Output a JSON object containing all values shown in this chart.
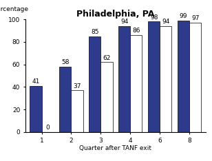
{
  "title": "Philadelphia, PA",
  "ylabel": "Percentage",
  "xlabel": "Quarter after TANF exit",
  "categories": [
    "1",
    "2",
    "3",
    "4",
    "6",
    "8"
  ],
  "blue_values": [
    41,
    58,
    85,
    94,
    98,
    99
  ],
  "white_values": [
    0,
    37,
    62,
    86,
    94,
    97
  ],
  "blue_color": "#2E3B8C",
  "white_color": "#FFFFFF",
  "bar_edge_color": "#000000",
  "ylim": [
    0,
    100
  ],
  "yticks": [
    0,
    20,
    40,
    60,
    80,
    100
  ],
  "bar_width": 0.4,
  "title_fontsize": 9,
  "label_fontsize": 6.5,
  "tick_fontsize": 6.5,
  "annot_fontsize": 6.5
}
